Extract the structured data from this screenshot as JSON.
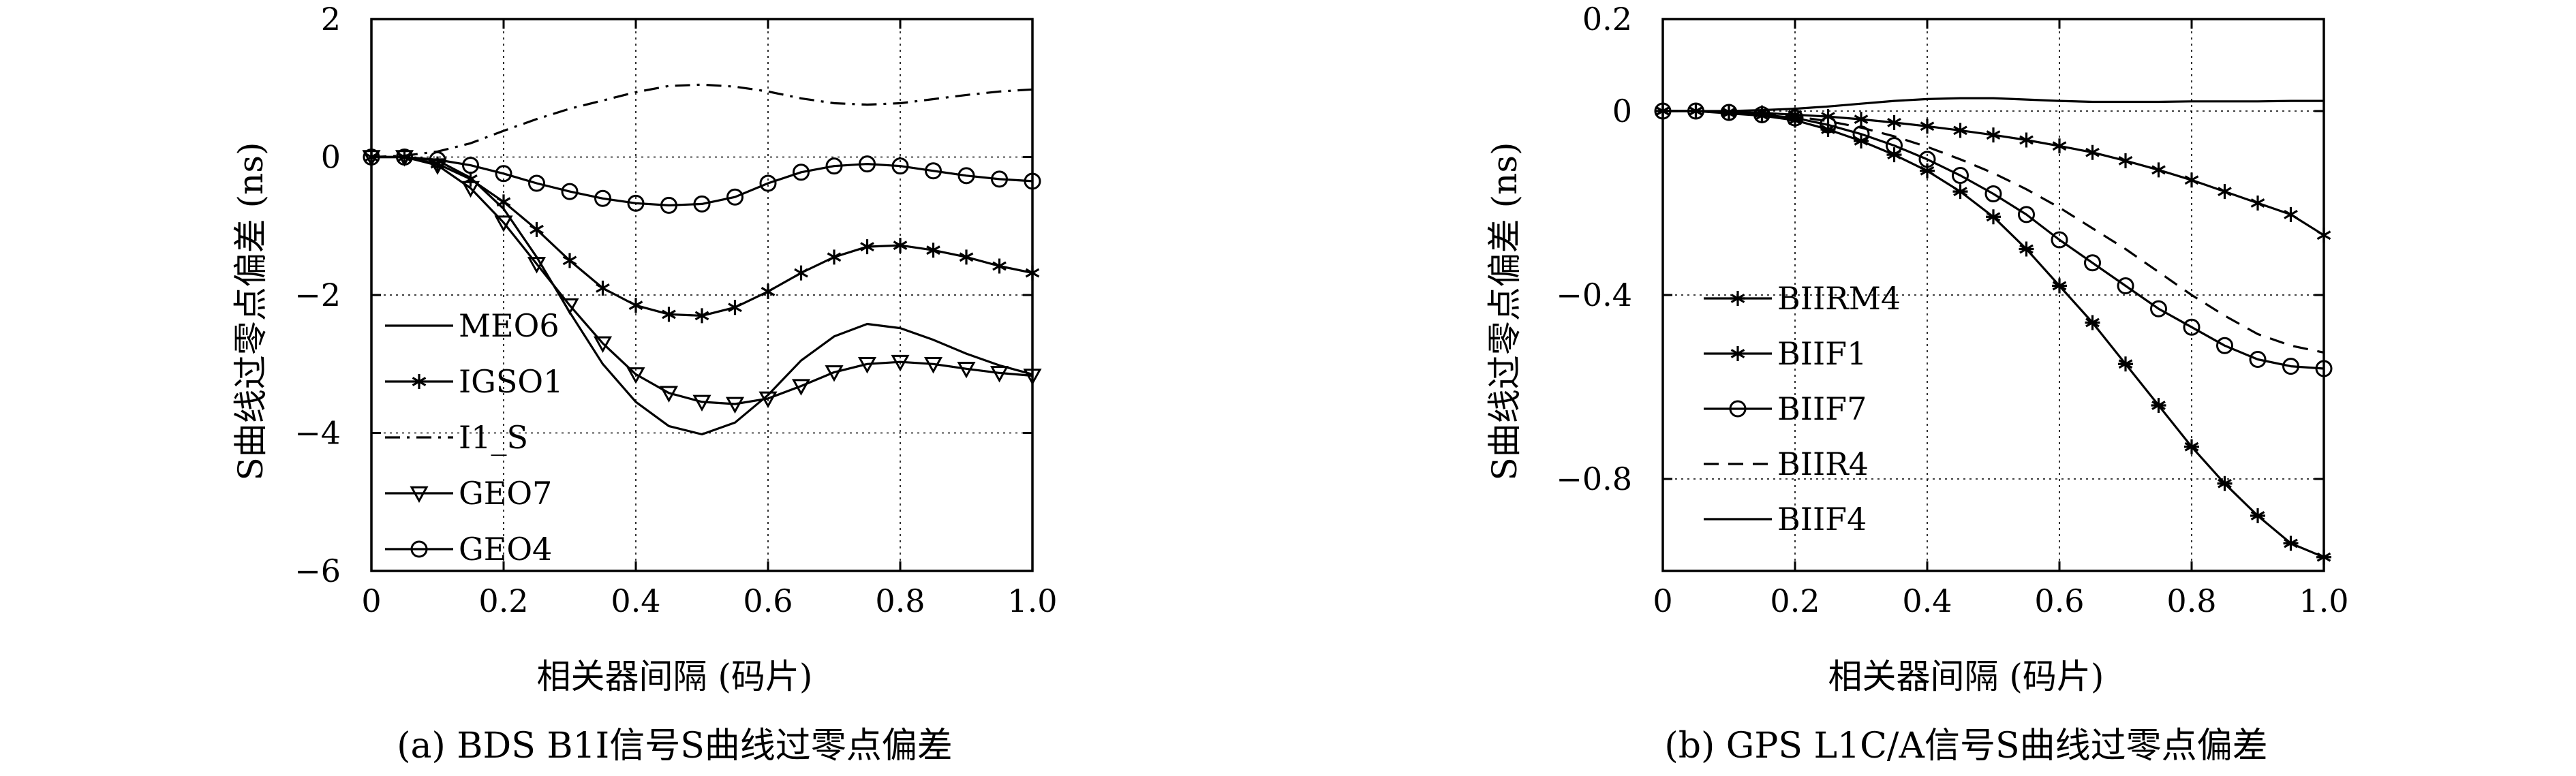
{
  "chart_data": [
    {
      "type": "line",
      "xlabel": "相关器间隔 (码片)",
      "ylabel": "S曲线过零点偏差 (ns)",
      "caption": "(a) BDS B1I信号S曲线过零点偏差",
      "xlim": [
        0,
        1.0
      ],
      "ylim": [
        -6,
        2
      ],
      "xticks": [
        "0",
        "0.2",
        "0.4",
        "0.6",
        "0.8",
        "1.0"
      ],
      "yticks": [
        "2",
        "0",
        "−2",
        "−4",
        "−6"
      ],
      "grid": true,
      "legend_position": "lower-left",
      "x": [
        0,
        0.05,
        0.1,
        0.15,
        0.2,
        0.25,
        0.3,
        0.35,
        0.4,
        0.45,
        0.5,
        0.55,
        0.6,
        0.65,
        0.7,
        0.75,
        0.8,
        0.85,
        0.9,
        0.95,
        1.0
      ],
      "series": [
        {
          "name": "MEO6",
          "style": "solid",
          "marker": "none",
          "values": [
            0,
            0,
            -0.05,
            -0.3,
            -0.75,
            -1.45,
            -2.25,
            -3.0,
            -3.55,
            -3.9,
            -4.02,
            -3.85,
            -3.45,
            -2.95,
            -2.6,
            -2.42,
            -2.48,
            -2.65,
            -2.85,
            -3.02,
            -3.15
          ]
        },
        {
          "name": "IGSO1",
          "style": "solid",
          "marker": "star",
          "values": [
            0,
            0,
            -0.1,
            -0.32,
            -0.65,
            -1.05,
            -1.5,
            -1.9,
            -2.15,
            -2.28,
            -2.3,
            -2.18,
            -1.95,
            -1.68,
            -1.45,
            -1.3,
            -1.28,
            -1.35,
            -1.45,
            -1.58,
            -1.68
          ]
        },
        {
          "name": "I1_S",
          "style": "dashdot",
          "marker": "none",
          "values": [
            0,
            0.02,
            0.08,
            0.2,
            0.38,
            0.55,
            0.7,
            0.82,
            0.94,
            1.03,
            1.05,
            1.02,
            0.95,
            0.85,
            0.78,
            0.76,
            0.78,
            0.84,
            0.9,
            0.95,
            0.98
          ]
        },
        {
          "name": "GEO7",
          "style": "solid",
          "marker": "triangle-down",
          "values": [
            0,
            0,
            -0.12,
            -0.45,
            -0.95,
            -1.55,
            -2.15,
            -2.7,
            -3.15,
            -3.42,
            -3.55,
            -3.58,
            -3.5,
            -3.32,
            -3.12,
            -3.0,
            -2.97,
            -3.0,
            -3.07,
            -3.13,
            -3.17
          ]
        },
        {
          "name": "GEO4",
          "style": "solid",
          "marker": "circle",
          "values": [
            0,
            0,
            -0.04,
            -0.12,
            -0.24,
            -0.38,
            -0.5,
            -0.6,
            -0.67,
            -0.7,
            -0.68,
            -0.58,
            -0.38,
            -0.22,
            -0.13,
            -0.1,
            -0.13,
            -0.2,
            -0.27,
            -0.32,
            -0.35
          ]
        }
      ]
    },
    {
      "type": "line",
      "xlabel": "相关器间隔 (码片)",
      "ylabel": "S曲线过零点偏差 (ns)",
      "caption": "(b) GPS L1C/A信号S曲线过零点偏差",
      "xlim": [
        0,
        1.0
      ],
      "ylim": [
        -1.0,
        0.2
      ],
      "xticks": [
        "0",
        "0.2",
        "0.4",
        "0.6",
        "0.8",
        "1.0"
      ],
      "yticks": [
        "0.2",
        "0",
        "−0.4",
        "−0.8"
      ],
      "grid": true,
      "legend_position": "lower-left",
      "x": [
        0,
        0.05,
        0.1,
        0.15,
        0.2,
        0.25,
        0.3,
        0.35,
        0.4,
        0.45,
        0.5,
        0.55,
        0.6,
        0.65,
        0.7,
        0.75,
        0.8,
        0.85,
        0.9,
        0.95,
        1.0
      ],
      "series": [
        {
          "name": "BIIRM4",
          "style": "solid",
          "marker": "star-tick",
          "values": [
            0,
            0,
            -0.005,
            -0.01,
            -0.02,
            -0.04,
            -0.065,
            -0.095,
            -0.13,
            -0.175,
            -0.23,
            -0.3,
            -0.38,
            -0.46,
            -0.55,
            -0.64,
            -0.73,
            -0.81,
            -0.88,
            -0.94,
            -0.97
          ]
        },
        {
          "name": "BIIF1",
          "style": "solid",
          "marker": "star",
          "values": [
            0,
            0,
            -0.002,
            -0.004,
            -0.008,
            -0.012,
            -0.018,
            -0.025,
            -0.033,
            -0.042,
            -0.052,
            -0.063,
            -0.076,
            -0.09,
            -0.108,
            -0.128,
            -0.15,
            -0.175,
            -0.2,
            -0.225,
            -0.27
          ]
        },
        {
          "name": "BIIF7",
          "style": "solid",
          "marker": "circle",
          "values": [
            0,
            0,
            -0.003,
            -0.008,
            -0.015,
            -0.03,
            -0.05,
            -0.075,
            -0.105,
            -0.14,
            -0.18,
            -0.225,
            -0.28,
            -0.33,
            -0.38,
            -0.43,
            -0.47,
            -0.51,
            -0.54,
            -0.555,
            -0.56
          ]
        },
        {
          "name": "BIIR4",
          "style": "dashed",
          "marker": "none",
          "values": [
            0,
            0,
            -0.002,
            -0.006,
            -0.012,
            -0.022,
            -0.036,
            -0.055,
            -0.078,
            -0.105,
            -0.135,
            -0.17,
            -0.21,
            -0.255,
            -0.3,
            -0.35,
            -0.4,
            -0.445,
            -0.485,
            -0.51,
            -0.525
          ]
        },
        {
          "name": "BIIF4",
          "style": "solid",
          "marker": "none",
          "values": [
            0,
            0,
            0,
            0.002,
            0.005,
            0.01,
            0.016,
            0.022,
            0.026,
            0.028,
            0.028,
            0.025,
            0.022,
            0.02,
            0.02,
            0.02,
            0.021,
            0.021,
            0.021,
            0.022,
            0.022
          ]
        }
      ]
    }
  ]
}
